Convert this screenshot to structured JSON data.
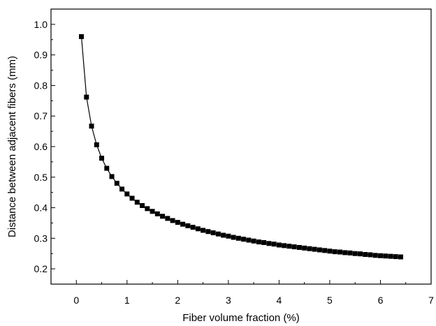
{
  "chart_data": {
    "type": "line",
    "xlabel": "Fiber volume fraction (%)",
    "ylabel": "Distance between adjacent fibers (mm)",
    "xlim": [
      -0.5,
      7
    ],
    "ylim": [
      0.15,
      1.05
    ],
    "x_ticks": [
      0,
      1,
      2,
      3,
      4,
      5,
      6,
      7
    ],
    "x_tick_labels": [
      "0",
      "1",
      "2",
      "3",
      "4",
      "5",
      "6",
      "7"
    ],
    "y_ticks": [
      0.2,
      0.3,
      0.4,
      0.5,
      0.6,
      0.7,
      0.8,
      0.9,
      1.0
    ],
    "y_tick_labels": [
      "0.2",
      "0.3",
      "0.4",
      "0.5",
      "0.6",
      "0.7",
      "0.8",
      "0.9",
      "1.0"
    ],
    "grid": false,
    "marker": "square",
    "series_color": "#000000",
    "series": [
      {
        "x": [
          0.1,
          0.2,
          0.3,
          0.4,
          0.5,
          0.6,
          0.7,
          0.8,
          0.9,
          1.0,
          1.1,
          1.2,
          1.3,
          1.4,
          1.5,
          1.6,
          1.7,
          1.8,
          1.9,
          2.0,
          2.1,
          2.2,
          2.3,
          2.4,
          2.5,
          2.6,
          2.7,
          2.8,
          2.9,
          3.0,
          3.1,
          3.2,
          3.3,
          3.4,
          3.5,
          3.6,
          3.7,
          3.8,
          3.9,
          4.0,
          4.1,
          4.2,
          4.3,
          4.4,
          4.5,
          4.6,
          4.7,
          4.8,
          4.9,
          5.0,
          5.1,
          5.2,
          5.3,
          5.4,
          5.5,
          5.6,
          5.7,
          5.8,
          5.9,
          6.0,
          6.1,
          6.2,
          6.3,
          6.4
        ],
        "y": [
          0.96,
          0.762,
          0.667,
          0.606,
          0.562,
          0.529,
          0.502,
          0.48,
          0.461,
          0.445,
          0.431,
          0.418,
          0.407,
          0.397,
          0.388,
          0.38,
          0.372,
          0.365,
          0.358,
          0.352,
          0.346,
          0.341,
          0.336,
          0.331,
          0.326,
          0.322,
          0.318,
          0.314,
          0.31,
          0.307,
          0.303,
          0.3,
          0.297,
          0.294,
          0.291,
          0.288,
          0.286,
          0.283,
          0.281,
          0.278,
          0.276,
          0.274,
          0.272,
          0.27,
          0.268,
          0.266,
          0.264,
          0.262,
          0.26,
          0.258,
          0.256,
          0.255,
          0.253,
          0.252,
          0.25,
          0.249,
          0.247,
          0.246,
          0.244,
          0.243,
          0.242,
          0.241,
          0.24,
          0.239
        ]
      }
    ]
  }
}
